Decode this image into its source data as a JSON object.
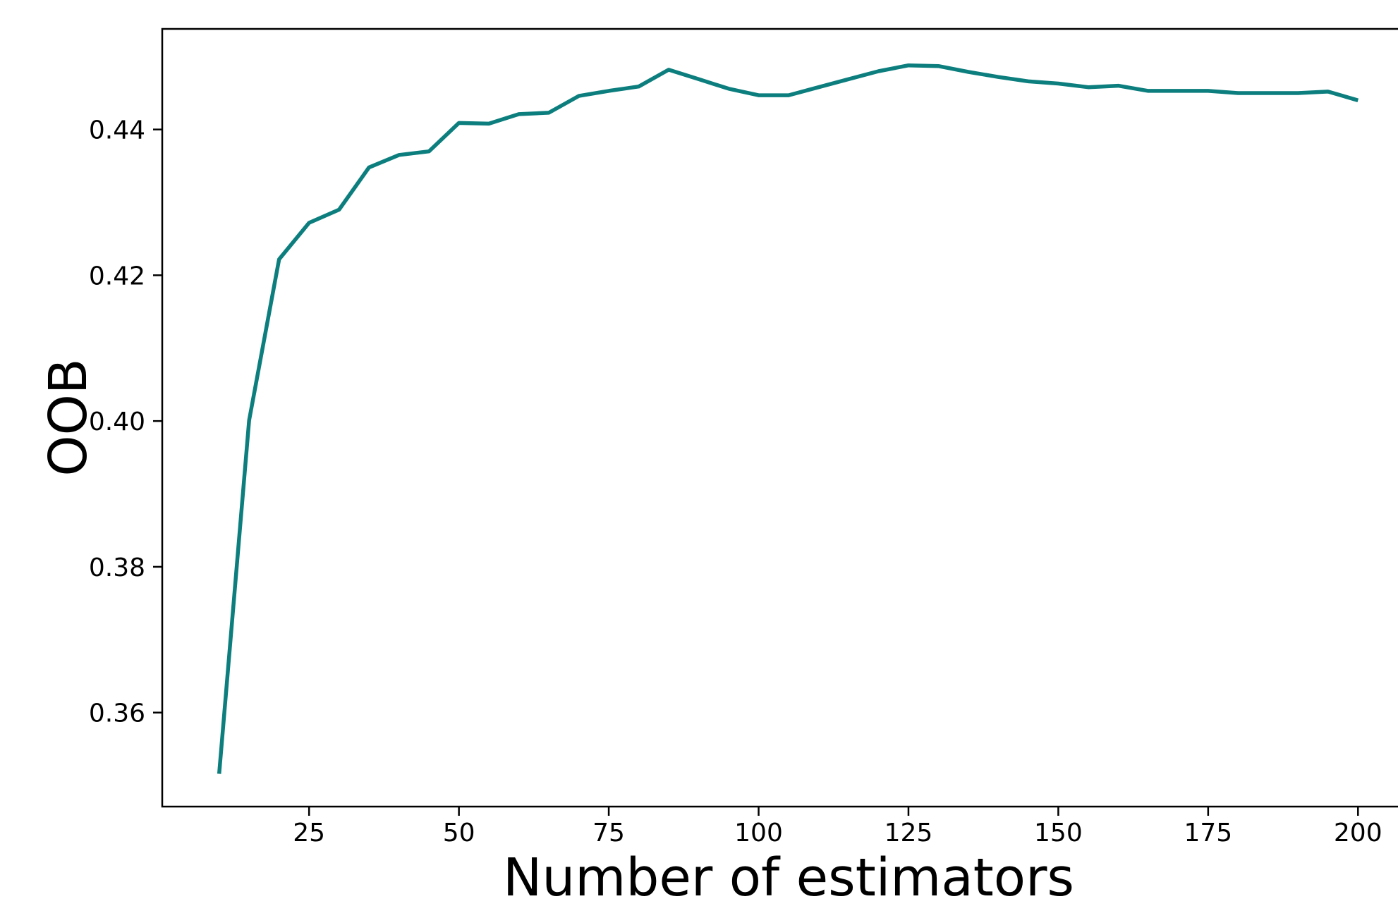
{
  "chart_data": {
    "type": "line",
    "xlabel": "Number of estimators",
    "ylabel": "OOB",
    "x": [
      10,
      15,
      20,
      25,
      30,
      35,
      40,
      45,
      50,
      55,
      60,
      65,
      70,
      75,
      80,
      85,
      90,
      95,
      100,
      105,
      110,
      115,
      120,
      125,
      130,
      135,
      140,
      145,
      150,
      155,
      160,
      165,
      170,
      175,
      180,
      185,
      190,
      195,
      200
    ],
    "y": [
      0.3516,
      0.4001,
      0.4222,
      0.4272,
      0.429,
      0.4348,
      0.4365,
      0.437,
      0.4409,
      0.4408,
      0.4421,
      0.4423,
      0.4446,
      0.4453,
      0.4459,
      0.4482,
      0.4469,
      0.4456,
      0.4447,
      0.4447,
      0.4458,
      0.4469,
      0.448,
      0.4488,
      0.4487,
      0.4479,
      0.4472,
      0.4466,
      0.4463,
      0.4458,
      0.446,
      0.4453,
      0.4453,
      0.4453,
      0.445,
      0.445,
      0.445,
      0.4452,
      0.444
    ],
    "xlim": [
      0.5,
      209.5
    ],
    "ylim": [
      0.3471,
      0.4538
    ],
    "xticks": [
      25,
      50,
      75,
      100,
      125,
      150,
      175,
      200
    ],
    "yticks": [
      0.36,
      0.38,
      0.4,
      0.42,
      0.44
    ],
    "grid": false,
    "legend": "none",
    "line_color": "#0d7e7e",
    "axis_color": "#000000",
    "background": "#ffffff"
  }
}
